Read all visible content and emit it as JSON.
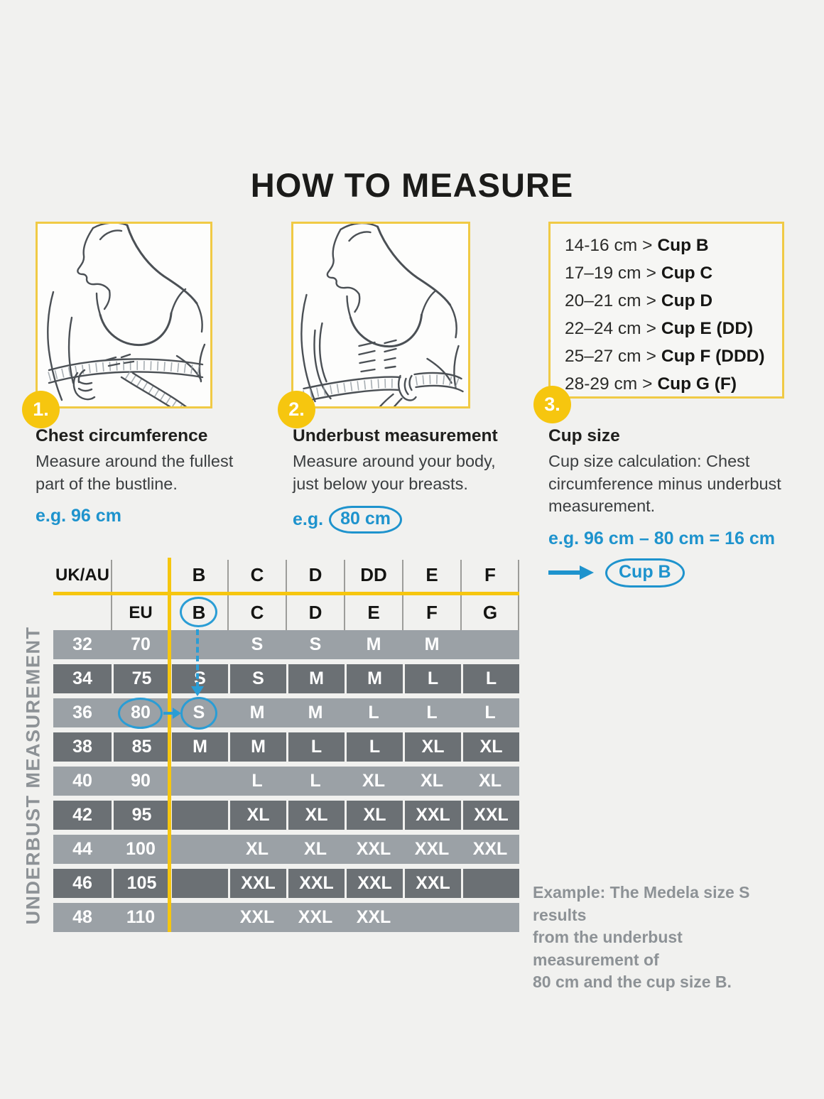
{
  "page": {
    "title": "HOW TO MEASURE"
  },
  "colors": {
    "yellow": "#f6c60f",
    "yellow_border": "#f0ca45",
    "blue": "#1e93cd",
    "row_light": "#9ba1a6",
    "row_dark": "#6b7074",
    "text_dark": "#1d1d1b",
    "text_gray": "#8d9296",
    "page_bg": "#f1f1ef",
    "box_bg": "#fdfdfc",
    "line_art": "#4b5055",
    "sep_gray": "#9d9d9a"
  },
  "steps": [
    {
      "number": "1.",
      "title": "Chest circumference",
      "body": "Measure around the fullest\npart of the bustline.",
      "example_prefix": "e.g.",
      "example_value": "96 cm"
    },
    {
      "number": "2.",
      "title": "Underbust measurement",
      "body": "Measure around your body,\njust below your breasts.",
      "example_prefix": "e.g.",
      "example_value": "80 cm"
    },
    {
      "number": "3.",
      "title": "Cup size",
      "body": "Cup size calculation: Chest\ncircumference minus underbust\nmeasurement.",
      "example_formula": "e.g. 96 cm – 80 cm = 16 cm",
      "example_result": "Cup B"
    }
  ],
  "cup_table": {
    "separator": ">",
    "items": [
      {
        "range": "14-16 cm",
        "cup": "Cup B"
      },
      {
        "range": "17–19 cm",
        "cup": "Cup C"
      },
      {
        "range": "20–21 cm",
        "cup": "Cup D"
      },
      {
        "range": "22–24 cm",
        "cup": "Cup E (DD)"
      },
      {
        "range": "25–27 cm",
        "cup": "Cup F (DDD)"
      },
      {
        "range": "28-29 cm",
        "cup": "Cup G (F)"
      }
    ]
  },
  "size_chart": {
    "vertical_label": "UNDERBUST MEASUREMENT",
    "uk_au_label": "UK/AU",
    "eu_label": "EU",
    "uk_au_cups": [
      "B",
      "C",
      "D",
      "DD",
      "E",
      "F"
    ],
    "eu_cups": [
      "B",
      "C",
      "D",
      "E",
      "F",
      "G"
    ],
    "rows": [
      {
        "uk": "32",
        "eu": "70",
        "sizes": [
          "",
          "S",
          "S",
          "M",
          "M",
          ""
        ]
      },
      {
        "uk": "34",
        "eu": "75",
        "sizes": [
          "S",
          "S",
          "M",
          "M",
          "L",
          "L"
        ]
      },
      {
        "uk": "36",
        "eu": "80",
        "sizes": [
          "S",
          "M",
          "M",
          "L",
          "L",
          "L"
        ]
      },
      {
        "uk": "38",
        "eu": "85",
        "sizes": [
          "M",
          "M",
          "L",
          "L",
          "XL",
          "XL"
        ]
      },
      {
        "uk": "40",
        "eu": "90",
        "sizes": [
          "",
          "L",
          "L",
          "XL",
          "XL",
          "XL"
        ]
      },
      {
        "uk": "42",
        "eu": "95",
        "sizes": [
          "",
          "XL",
          "XL",
          "XL",
          "XXL",
          "XXL"
        ]
      },
      {
        "uk": "44",
        "eu": "100",
        "sizes": [
          "",
          "XL",
          "XL",
          "XXL",
          "XXL",
          "XXL"
        ]
      },
      {
        "uk": "46",
        "eu": "105",
        "sizes": [
          "",
          "XXL",
          "XXL",
          "XXL",
          "XXL",
          ""
        ]
      },
      {
        "uk": "48",
        "eu": "110",
        "sizes": [
          "",
          "XXL",
          "XXL",
          "XXL",
          "",
          ""
        ]
      }
    ],
    "highlight": {
      "eu_cup": "B",
      "underbust_value": "80",
      "resulting_size": "S"
    }
  },
  "footer_note": {
    "text": "Example: The Medela size S results\nfrom the underbust measurement of\n80 cm and the cup size B."
  }
}
